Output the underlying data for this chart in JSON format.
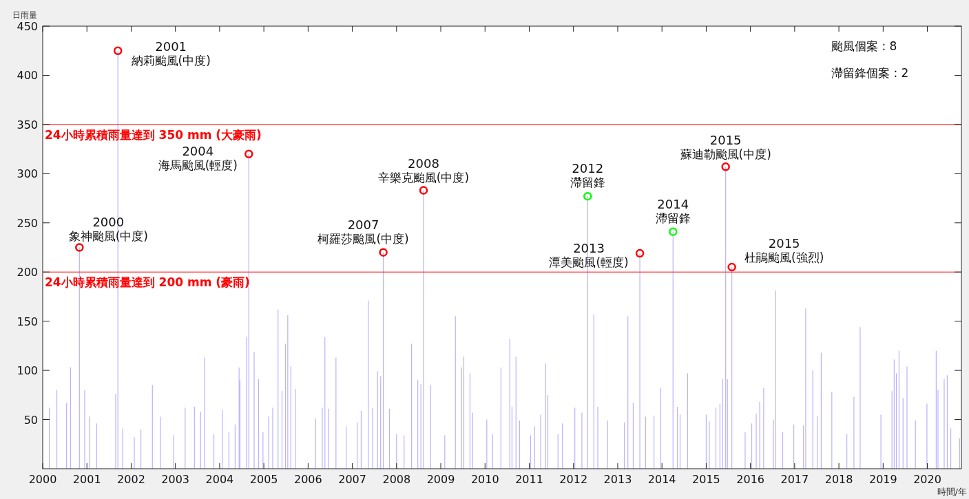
{
  "chart_data": {
    "type": "bar",
    "xlabel": "時間/年",
    "ylabel": "日雨量",
    "xlim": [
      2000,
      2020.77
    ],
    "xticks": [
      2000,
      2001,
      2002,
      2003,
      2004,
      2005,
      2006,
      2007,
      2008,
      2009,
      2010,
      2011,
      2012,
      2013,
      2014,
      2015,
      2016,
      2017,
      2018,
      2019,
      2020
    ],
    "ylim": [
      0,
      450
    ],
    "yticks": [
      50,
      100,
      150,
      200,
      250,
      300,
      350,
      400,
      450
    ],
    "grid": false,
    "marker": "circle",
    "series": [
      {
        "color": "#7f73ff",
        "x": [
          2000.15,
          2000.32,
          2000.54,
          2000.63,
          2000.83,
          2000.95,
          2001.06,
          2001.22,
          2001.65,
          2001.7,
          2001.81,
          2002.07,
          2002.22,
          2002.48,
          2002.66,
          2002.96,
          2003.22,
          2003.43,
          2003.57,
          2003.66,
          2003.87,
          2004.06,
          2004.21,
          2004.35,
          2004.44,
          2004.46,
          2004.61,
          2004.66,
          2004.78,
          2004.88,
          2004.98,
          2005.11,
          2005.2,
          2005.32,
          2005.41,
          2005.49,
          2005.54,
          2005.61,
          2005.71,
          2006.17,
          2006.32,
          2006.38,
          2006.46,
          2006.63,
          2006.86,
          2007.11,
          2007.2,
          2007.36,
          2007.46,
          2007.57,
          2007.64,
          2007.7,
          2007.84,
          2008.0,
          2008.17,
          2008.34,
          2008.48,
          2008.55,
          2008.61,
          2008.77,
          2009.09,
          2009.33,
          2009.47,
          2009.52,
          2009.66,
          2009.72,
          2010.04,
          2010.17,
          2010.36,
          2010.56,
          2010.61,
          2010.7,
          2010.78,
          2011.03,
          2011.12,
          2011.26,
          2011.37,
          2011.42,
          2011.65,
          2011.75,
          2012.03,
          2012.19,
          2012.32,
          2012.46,
          2012.55,
          2012.77,
          2013.15,
          2013.23,
          2013.35,
          2013.5,
          2013.63,
          2013.82,
          2013.97,
          2014.25,
          2014.35,
          2014.41,
          2014.58,
          2015.0,
          2015.07,
          2015.22,
          2015.31,
          2015.37,
          2015.44,
          2015.48,
          2015.58,
          2015.88,
          2016.03,
          2016.13,
          2016.21,
          2016.3,
          2016.52,
          2016.57,
          2016.73,
          2016.98,
          2017.2,
          2017.25,
          2017.41,
          2017.51,
          2017.6,
          2017.84,
          2018.18,
          2018.34,
          2018.48,
          2018.95,
          2019.2,
          2019.25,
          2019.3,
          2019.36,
          2019.45,
          2019.54,
          2019.73,
          2019.99,
          2020.2,
          2020.24,
          2020.38,
          2020.45,
          2020.53,
          2020.73
        ],
        "values": [
          62,
          80,
          67,
          103,
          225,
          80,
          53,
          46,
          76,
          425,
          41,
          32,
          40,
          85,
          53,
          34,
          62,
          63,
          58,
          113,
          35,
          60,
          37,
          45,
          103,
          90,
          134,
          320,
          119,
          91,
          37,
          53,
          62,
          162,
          79,
          127,
          156,
          104,
          81,
          51,
          62,
          134,
          61,
          113,
          43,
          47,
          59,
          171,
          62,
          99,
          94,
          220,
          61,
          35,
          34,
          127,
          90,
          86,
          283,
          85,
          34,
          155,
          103,
          114,
          97,
          57,
          50,
          35,
          103,
          132,
          63,
          114,
          49,
          34,
          43,
          55,
          107,
          75,
          35,
          46,
          62,
          57,
          277,
          157,
          63,
          49,
          47,
          155,
          67,
          219,
          53,
          54,
          82,
          241,
          63,
          55,
          97,
          55,
          48,
          62,
          66,
          91,
          307,
          91,
          205,
          37,
          46,
          56,
          68,
          82,
          50,
          181,
          37,
          45,
          44,
          163,
          100,
          54,
          118,
          78,
          35,
          73,
          144,
          55,
          79,
          111,
          97,
          120,
          72,
          104,
          49,
          66,
          120,
          80,
          91,
          95,
          41,
          31
        ]
      },
      {
        "type": "scatter",
        "color": "#ff0000",
        "x": [
          2000.83,
          2001.7,
          2004.66,
          2007.7,
          2008.61,
          2013.5,
          2015.44,
          2015.58
        ],
        "values": [
          225,
          425,
          320,
          220,
          283,
          219,
          307,
          205
        ]
      },
      {
        "type": "scatter",
        "color": "#00ff00",
        "x": [
          2012.32,
          2014.25
        ],
        "values": [
          277,
          241
        ]
      }
    ],
    "ref_lines": [
      {
        "axis": "y",
        "value": 200,
        "label": "24小時累積雨量達到 200 mm (豪雨)",
        "color": "#ff0000"
      },
      {
        "axis": "y",
        "value": 350,
        "label": "24小時累積雨量達到 350 mm (大豪雨)",
        "color": "#ff0000"
      }
    ],
    "annotations": [
      {
        "text": "2000\n象神颱風(中度)",
        "x": 2000.83,
        "y": 225
      },
      {
        "text": "2001\n納莉颱風(中度)",
        "x": 2001.7,
        "y": 425
      },
      {
        "text": "2004\n海馬颱風(輕度)",
        "x": 2004.66,
        "y": 320
      },
      {
        "text": "2007\n柯羅莎颱風(中度)",
        "x": 2007.7,
        "y": 220
      },
      {
        "text": "2008\n辛樂克颱風(中度)",
        "x": 2008.61,
        "y": 283
      },
      {
        "text": "2012\n滯留鋒",
        "x": 2012.32,
        "y": 277
      },
      {
        "text": "2013\n潭美颱風(輕度)",
        "x": 2013.5,
        "y": 219
      },
      {
        "text": "2014\n滯留鋒",
        "x": 2014.25,
        "y": 241
      },
      {
        "text": "2015\n蘇迪勒颱風(中度)",
        "x": 2015.44,
        "y": 307
      },
      {
        "text": "2015\n杜鵑颱風(強烈)",
        "x": 2015.58,
        "y": 205
      },
      "颱風個案 : 8",
      "滯留鋒個案 : 2"
    ]
  }
}
